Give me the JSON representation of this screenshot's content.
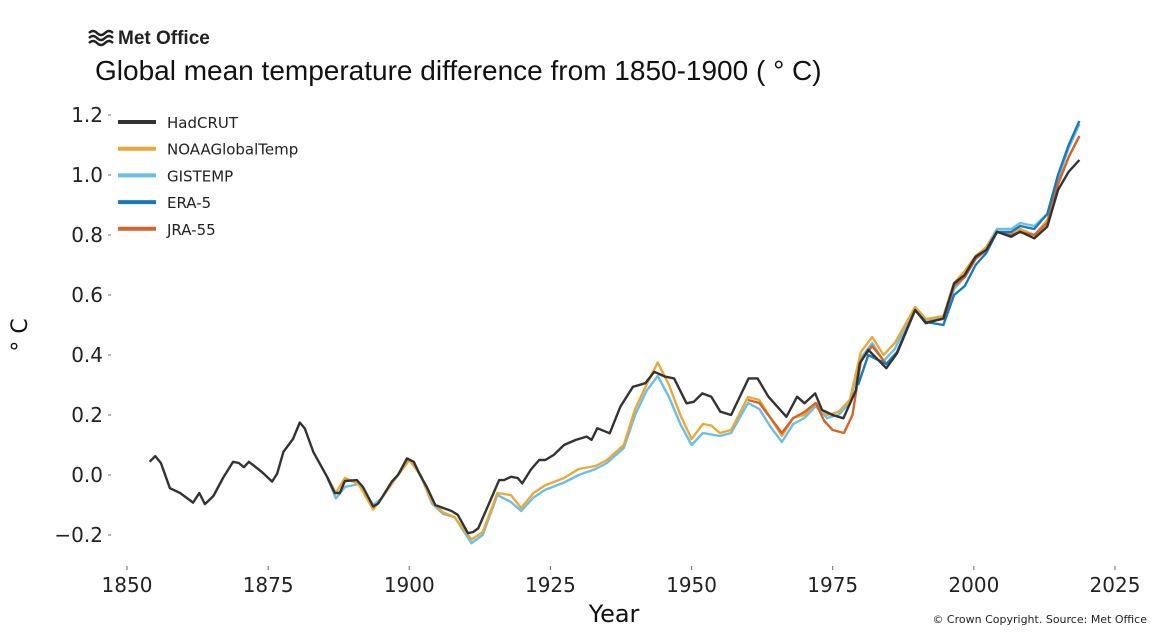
{
  "logo": {
    "text": "Met Office"
  },
  "copyright": "© Crown Copyright. Source: Met Office",
  "chart_data": {
    "type": "line",
    "title": "Global mean temperature difference from 1850-1900 ( ° C)",
    "xlabel": "Year",
    "ylabel": "° C",
    "xlim": [
      1850,
      2025
    ],
    "ylim": [
      -0.25,
      1.25
    ],
    "xticks": [
      "1850",
      "1875",
      "1900",
      "1925",
      "1950",
      "1975",
      "2000",
      "2025"
    ],
    "yticks": [
      "−0.2",
      "0.0",
      "0.2",
      "0.4",
      "0.6",
      "0.8",
      "1.0",
      "1.2"
    ],
    "grid": false,
    "legend_position": "top-left",
    "series": [
      {
        "name": "HadCRUT",
        "color": "#333333",
        "points": [
          [
            1854,
            0.044
          ],
          [
            1855,
            0.063
          ],
          [
            1856,
            0.04
          ],
          [
            1857.6,
            -0.044
          ],
          [
            1859.4,
            -0.06
          ],
          [
            1861.7,
            -0.092
          ],
          [
            1862.8,
            -0.06
          ],
          [
            1863.8,
            -0.097
          ],
          [
            1865.3,
            -0.07
          ],
          [
            1867,
            -0.01
          ],
          [
            1868.8,
            0.044
          ],
          [
            1869.8,
            0.04
          ],
          [
            1870.7,
            0.026
          ],
          [
            1871.6,
            0.044
          ],
          [
            1873.9,
            0.01
          ],
          [
            1875.7,
            -0.022
          ],
          [
            1876.6,
            0.005
          ],
          [
            1877.7,
            0.077
          ],
          [
            1879.4,
            0.12
          ],
          [
            1880.6,
            0.175
          ],
          [
            1881.5,
            0.155
          ],
          [
            1883,
            0.077
          ],
          [
            1885.4,
            -0.005
          ],
          [
            1886.8,
            -0.06
          ],
          [
            1887.7,
            -0.06
          ],
          [
            1888.6,
            -0.02
          ],
          [
            1890.7,
            -0.017
          ],
          [
            1891.8,
            -0.04
          ],
          [
            1893.6,
            -0.105
          ],
          [
            1894.5,
            -0.095
          ],
          [
            1896.9,
            -0.022
          ],
          [
            1898,
            0
          ],
          [
            1899.6,
            0.055
          ],
          [
            1900.8,
            0.044
          ],
          [
            1901.9,
            0
          ],
          [
            1903.1,
            -0.04
          ],
          [
            1904.6,
            -0.1
          ],
          [
            1906,
            -0.11
          ],
          [
            1907.5,
            -0.12
          ],
          [
            1908.6,
            -0.133
          ],
          [
            1910.4,
            -0.194
          ],
          [
            1911.3,
            -0.19
          ],
          [
            1912.2,
            -0.178
          ],
          [
            1914.4,
            -0.083
          ],
          [
            1915.9,
            -0.017
          ],
          [
            1916.8,
            -0.017
          ],
          [
            1918,
            -0.006
          ],
          [
            1919.2,
            -0.01
          ],
          [
            1920,
            -0.028
          ],
          [
            1921.5,
            0.017
          ],
          [
            1923,
            0.05
          ],
          [
            1924.1,
            0.05
          ],
          [
            1925.6,
            0.067
          ],
          [
            1927.4,
            0.1
          ],
          [
            1929.5,
            0.117
          ],
          [
            1931.4,
            0.128
          ],
          [
            1932.3,
            0.117
          ],
          [
            1933.3,
            0.156
          ],
          [
            1935.5,
            0.139
          ],
          [
            1937.4,
            0.228
          ],
          [
            1939.6,
            0.294
          ],
          [
            1941.8,
            0.306
          ],
          [
            1943.4,
            0.344
          ],
          [
            1945.3,
            0.328
          ],
          [
            1946.9,
            0.322
          ],
          [
            1949.1,
            0.239
          ],
          [
            1950.4,
            0.244
          ],
          [
            1951.9,
            0.272
          ],
          [
            1953.5,
            0.261
          ],
          [
            1955.1,
            0.211
          ],
          [
            1957,
            0.2
          ],
          [
            1960.1,
            0.322
          ],
          [
            1961.7,
            0.322
          ],
          [
            1963.6,
            0.261
          ],
          [
            1966.8,
            0.194
          ],
          [
            1968.7,
            0.261
          ],
          [
            1970,
            0.239
          ],
          [
            1971.9,
            0.272
          ],
          [
            1973.1,
            0.217
          ],
          [
            1975,
            0.2
          ],
          [
            1976.9,
            0.189
          ],
          [
            1979.1,
            0.283
          ],
          [
            1979.8,
            0.372
          ],
          [
            1981.3,
            0.417
          ],
          [
            1984.5,
            0.356
          ],
          [
            1986.4,
            0.406
          ],
          [
            1989.6,
            0.55
          ],
          [
            1991.5,
            0.506
          ],
          [
            1994.6,
            0.522
          ],
          [
            1996.5,
            0.639
          ],
          [
            1998.4,
            0.667
          ],
          [
            2000.3,
            0.728
          ],
          [
            2002.2,
            0.75
          ],
          [
            2004.1,
            0.811
          ],
          [
            2006.6,
            0.794
          ],
          [
            2008.2,
            0.811
          ],
          [
            2010.7,
            0.789
          ],
          [
            2013,
            0.828
          ],
          [
            2014.9,
            0.95
          ],
          [
            2016.8,
            1.011
          ],
          [
            2018.7,
            1.05
          ]
        ]
      },
      {
        "name": "NOAAGlobalTemp",
        "color": "#e8a93a",
        "points": [
          [
            1885.4,
            -0.005
          ],
          [
            1887,
            -0.06
          ],
          [
            1888.6,
            -0.01
          ],
          [
            1891,
            -0.03
          ],
          [
            1893.6,
            -0.115
          ],
          [
            1895,
            -0.08
          ],
          [
            1898,
            0
          ],
          [
            1900,
            0.05
          ],
          [
            1902,
            0
          ],
          [
            1904,
            -0.09
          ],
          [
            1906,
            -0.125
          ],
          [
            1908,
            -0.14
          ],
          [
            1911,
            -0.215
          ],
          [
            1913,
            -0.19
          ],
          [
            1915.6,
            -0.06
          ],
          [
            1918,
            -0.067
          ],
          [
            1919.8,
            -0.11
          ],
          [
            1922,
            -0.06
          ],
          [
            1924,
            -0.035
          ],
          [
            1927.4,
            -0.01
          ],
          [
            1930,
            0.02
          ],
          [
            1933,
            0.03
          ],
          [
            1935,
            0.05
          ],
          [
            1938,
            0.1
          ],
          [
            1940,
            0.22
          ],
          [
            1942,
            0.3
          ],
          [
            1944,
            0.375
          ],
          [
            1946,
            0.3
          ],
          [
            1948,
            0.2
          ],
          [
            1950,
            0.12
          ],
          [
            1952,
            0.17
          ],
          [
            1953.5,
            0.165
          ],
          [
            1955,
            0.14
          ],
          [
            1957,
            0.15
          ],
          [
            1960,
            0.26
          ],
          [
            1962,
            0.25
          ],
          [
            1964,
            0.19
          ],
          [
            1966,
            0.13
          ],
          [
            1968,
            0.19
          ],
          [
            1970,
            0.2
          ],
          [
            1972,
            0.24
          ],
          [
            1974,
            0.2
          ],
          [
            1976,
            0.21
          ],
          [
            1978,
            0.25
          ],
          [
            1980,
            0.41
          ],
          [
            1982,
            0.46
          ],
          [
            1984,
            0.4
          ],
          [
            1986,
            0.44
          ],
          [
            1989.6,
            0.56
          ],
          [
            1991.5,
            0.52
          ],
          [
            1994.6,
            0.53
          ],
          [
            1996.5,
            0.64
          ],
          [
            1998.4,
            0.68
          ],
          [
            2000.3,
            0.73
          ],
          [
            2002.2,
            0.76
          ],
          [
            2004.1,
            0.81
          ],
          [
            2006.6,
            0.8
          ],
          [
            2008.2,
            0.82
          ],
          [
            2010.7,
            0.8
          ],
          [
            2013,
            0.85
          ],
          [
            2014.9,
            0.97
          ],
          [
            2016.8,
            1.06
          ],
          [
            2018.7,
            1.13
          ]
        ]
      },
      {
        "name": "GISTEMP",
        "color": "#6cbde8",
        "points": [
          [
            1885.4,
            -0.005
          ],
          [
            1887,
            -0.078
          ],
          [
            1888.6,
            -0.04
          ],
          [
            1891,
            -0.03
          ],
          [
            1893.6,
            -0.1
          ],
          [
            1895,
            -0.08
          ],
          [
            1898,
            0
          ],
          [
            1900,
            0.05
          ],
          [
            1902,
            0
          ],
          [
            1904,
            -0.095
          ],
          [
            1906,
            -0.13
          ],
          [
            1908,
            -0.14
          ],
          [
            1911,
            -0.227
          ],
          [
            1913,
            -0.2
          ],
          [
            1915.6,
            -0.067
          ],
          [
            1918,
            -0.09
          ],
          [
            1919.8,
            -0.12
          ],
          [
            1922,
            -0.075
          ],
          [
            1924,
            -0.05
          ],
          [
            1927.4,
            -0.025
          ],
          [
            1930,
            0.0
          ],
          [
            1933,
            0.02
          ],
          [
            1935,
            0.04
          ],
          [
            1938,
            0.09
          ],
          [
            1940,
            0.2
          ],
          [
            1942,
            0.28
          ],
          [
            1944,
            0.33
          ],
          [
            1946,
            0.26
          ],
          [
            1948,
            0.17
          ],
          [
            1950,
            0.1
          ],
          [
            1952,
            0.14
          ],
          [
            1953.5,
            0.135
          ],
          [
            1955,
            0.13
          ],
          [
            1957,
            0.14
          ],
          [
            1960,
            0.24
          ],
          [
            1962,
            0.22
          ],
          [
            1964,
            0.16
          ],
          [
            1966,
            0.11
          ],
          [
            1968,
            0.17
          ],
          [
            1970,
            0.19
          ],
          [
            1972,
            0.23
          ],
          [
            1974,
            0.19
          ],
          [
            1976,
            0.2
          ],
          [
            1978,
            0.24
          ],
          [
            1980,
            0.39
          ],
          [
            1982,
            0.44
          ],
          [
            1984,
            0.38
          ],
          [
            1986,
            0.42
          ],
          [
            1989.6,
            0.56
          ],
          [
            1991.5,
            0.52
          ],
          [
            1994.6,
            0.52
          ],
          [
            1996.5,
            0.62
          ],
          [
            1998.4,
            0.66
          ],
          [
            2000.3,
            0.72
          ],
          [
            2002.2,
            0.76
          ],
          [
            2004.1,
            0.82
          ],
          [
            2006.6,
            0.82
          ],
          [
            2008.2,
            0.84
          ],
          [
            2010.7,
            0.83
          ],
          [
            2013,
            0.87
          ],
          [
            2014.9,
            0.99
          ],
          [
            2016.8,
            1.09
          ],
          [
            2018.7,
            1.17
          ]
        ]
      },
      {
        "name": "ERA-5",
        "color": "#1a7ab8",
        "points": [
          [
            1979.5,
            0.3
          ],
          [
            1981.3,
            0.4
          ],
          [
            1984.5,
            0.37
          ],
          [
            1986.4,
            0.41
          ],
          [
            1989.6,
            0.55
          ],
          [
            1991.5,
            0.51
          ],
          [
            1994.6,
            0.5
          ],
          [
            1996.5,
            0.6
          ],
          [
            1998.4,
            0.63
          ],
          [
            2000.3,
            0.7
          ],
          [
            2002.2,
            0.74
          ],
          [
            2004.1,
            0.81
          ],
          [
            2006.6,
            0.81
          ],
          [
            2008.2,
            0.83
          ],
          [
            2010.7,
            0.82
          ],
          [
            2013,
            0.87
          ],
          [
            2014.9,
            1.0
          ],
          [
            2016.8,
            1.1
          ],
          [
            2018.7,
            1.18
          ]
        ]
      },
      {
        "name": "JRA-55",
        "color": "#d4642a",
        "points": [
          [
            1960,
            0.25
          ],
          [
            1962,
            0.24
          ],
          [
            1964,
            0.19
          ],
          [
            1966,
            0.14
          ],
          [
            1968,
            0.19
          ],
          [
            1970,
            0.21
          ],
          [
            1972,
            0.24
          ],
          [
            1973.5,
            0.18
          ],
          [
            1975,
            0.15
          ],
          [
            1977,
            0.14
          ],
          [
            1978.5,
            0.2
          ],
          [
            1980,
            0.38
          ],
          [
            1982,
            0.43
          ],
          [
            1984.5,
            0.37
          ],
          [
            1986.4,
            0.41
          ],
          [
            1989.6,
            0.55
          ],
          [
            1991.5,
            0.51
          ],
          [
            1994.6,
            0.52
          ],
          [
            1996.5,
            0.63
          ],
          [
            1998.4,
            0.66
          ],
          [
            2000.3,
            0.72
          ],
          [
            2002.2,
            0.75
          ],
          [
            2004.1,
            0.81
          ],
          [
            2006.6,
            0.8
          ],
          [
            2008.2,
            0.81
          ],
          [
            2010.7,
            0.8
          ],
          [
            2013,
            0.84
          ],
          [
            2014.9,
            0.97
          ],
          [
            2016.8,
            1.06
          ],
          [
            2018.7,
            1.13
          ]
        ]
      }
    ]
  }
}
